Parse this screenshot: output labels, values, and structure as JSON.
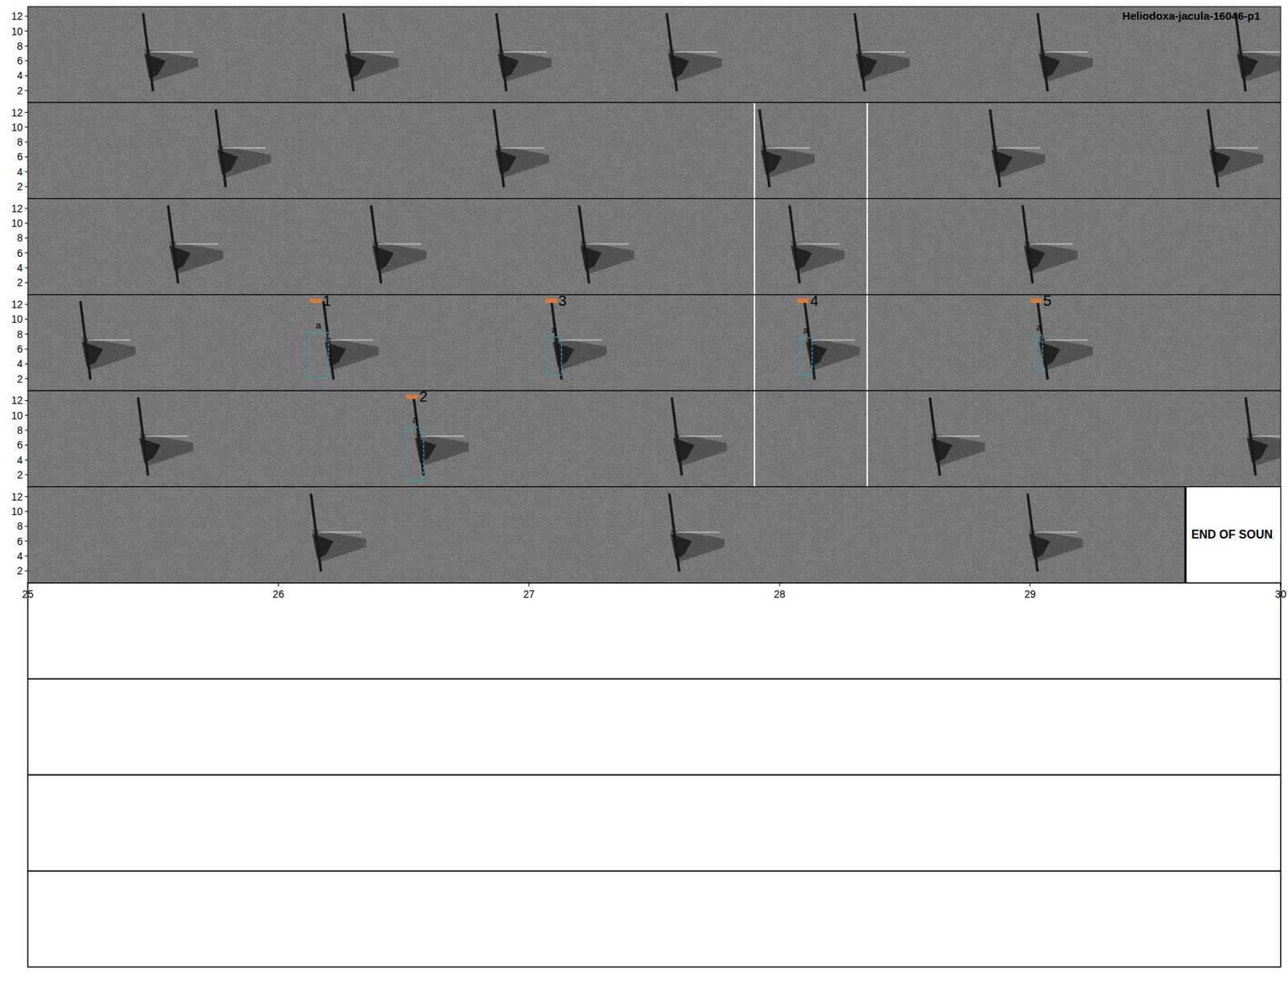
{
  "chart_data": {
    "type": "spectrogram",
    "title": "Heliodoxa-jacula-16046-p1",
    "rows": [
      {
        "xlim": [
          0,
          5
        ]
      },
      {
        "xlim": [
          5,
          10
        ]
      },
      {
        "xlim": [
          10,
          15
        ]
      },
      {
        "xlim": [
          15,
          20
        ]
      },
      {
        "xlim": [
          20,
          25
        ]
      },
      {
        "xlim": [
          25,
          30
        ]
      }
    ],
    "ylim": [
      0.4,
      13.3
    ],
    "yticks": [
      2,
      4,
      6,
      8,
      10,
      12
    ],
    "xticks": [
      25,
      26,
      27,
      28,
      29,
      30
    ],
    "calls": [
      0.46,
      1.26,
      1.87,
      2.55,
      3.3,
      4.03,
      4.82,
      5.75,
      6.86,
      7.92,
      8.84,
      9.71,
      10.56,
      11.37,
      12.2,
      13.04,
      13.97,
      15.21,
      16.18,
      17.09,
      18.1,
      19.03,
      20.44,
      21.54,
      22.57,
      23.6,
      24.86,
      26.13,
      27.56,
      28.99
    ],
    "annotations": [
      {
        "label": "1",
        "tag": "a",
        "x": [
          16.12,
          16.2
        ],
        "y": [
          2.1,
          8.2
        ]
      },
      {
        "label": "3",
        "tag": "a",
        "x": [
          17.07,
          17.13
        ],
        "y": [
          2.5,
          7.6
        ]
      },
      {
        "label": "4",
        "tag": "a",
        "x": [
          18.08,
          18.13
        ],
        "y": [
          2.5,
          7.5
        ]
      },
      {
        "label": "5",
        "tag": "a",
        "x": [
          19.02,
          19.05
        ],
        "y": [
          3.1,
          7.9
        ]
      },
      {
        "label": "2",
        "tag": "a",
        "x": [
          21.51,
          21.58
        ],
        "y": [
          1.2,
          8.4
        ]
      }
    ],
    "dividers": [
      7.9,
      8.35,
      12.9,
      13.35,
      17.9,
      18.35,
      22.9,
      23.35
    ],
    "end_of_sound": {
      "x": 29.62,
      "label": "END OF SOUN"
    },
    "blank_rows": 4
  }
}
